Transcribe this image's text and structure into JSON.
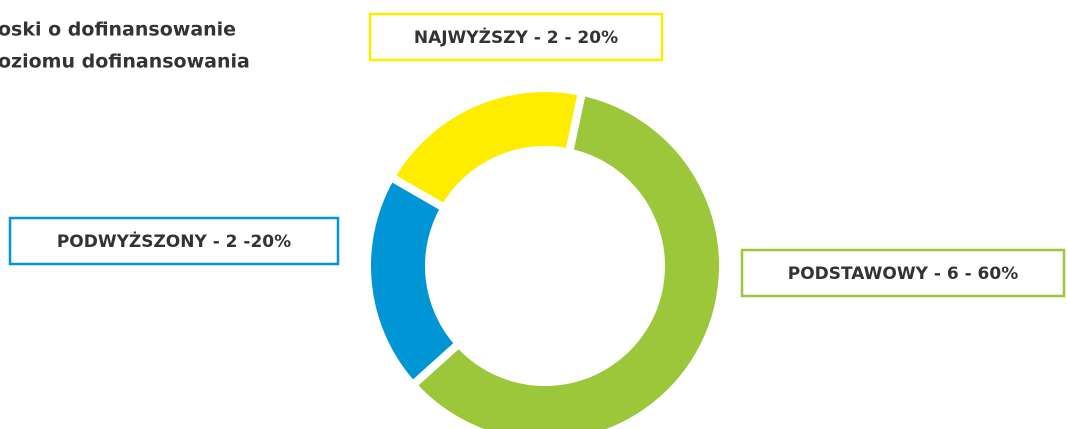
{
  "chart_data": {
    "type": "donut",
    "title_lines": [
      "oski o dofinansowanie",
      "oziomu dofinansowania"
    ],
    "values": [
      60,
      20,
      20
    ],
    "value_labels": [
      "PODSTAWOWY - 6 - 60%",
      "PODWYŻSZONY - 2 -20%",
      "NAJWYŻSZY - 2 - 20%"
    ],
    "colors": [
      "#9dc73a",
      "#0096d6",
      "#ffed00"
    ]
  }
}
